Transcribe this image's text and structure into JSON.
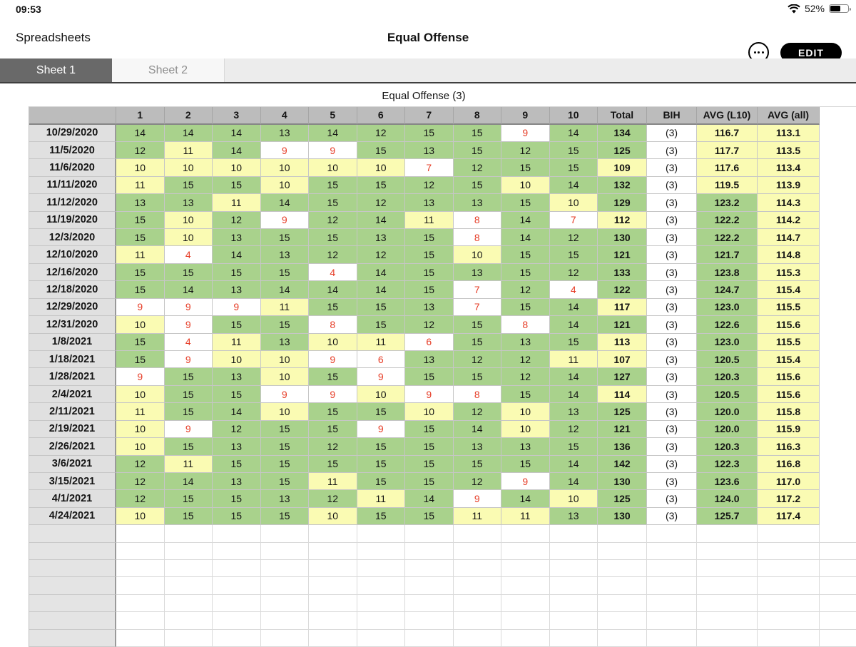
{
  "status_bar": {
    "time": "09:53",
    "battery": "52%"
  },
  "icons": {
    "wifi": "wifi-icon",
    "battery": "battery-icon",
    "more": "ellipsis-icon"
  },
  "nav": {
    "back_label": "Spreadsheets",
    "title": "Equal Offense",
    "edit_label": "EDIT"
  },
  "tabs": [
    {
      "label": "Sheet 1",
      "active": true
    },
    {
      "label": "Sheet 2",
      "active": false
    }
  ],
  "sheet": {
    "title": "Equal Offense (3)",
    "columns": [
      "1",
      "2",
      "3",
      "4",
      "5",
      "6",
      "7",
      "8",
      "9",
      "10",
      "Total",
      "BIH",
      "AVG (L10)",
      "AVG (all)"
    ],
    "rows": [
      {
        "date": "10/29/2020",
        "scores": [
          14,
          14,
          14,
          13,
          14,
          12,
          15,
          15,
          9,
          14
        ],
        "total": 134,
        "bih": "(3)",
        "avg_l10": "116.7",
        "avg_all": "113.1"
      },
      {
        "date": "11/5/2020",
        "scores": [
          12,
          11,
          14,
          9,
          9,
          15,
          13,
          15,
          12,
          15
        ],
        "total": 125,
        "bih": "(3)",
        "avg_l10": "117.7",
        "avg_all": "113.5"
      },
      {
        "date": "11/6/2020",
        "scores": [
          10,
          10,
          10,
          10,
          10,
          10,
          7,
          12,
          15,
          15
        ],
        "total": 109,
        "bih": "(3)",
        "avg_l10": "117.6",
        "avg_all": "113.4"
      },
      {
        "date": "11/11/2020",
        "scores": [
          11,
          15,
          15,
          10,
          15,
          15,
          12,
          15,
          10,
          14
        ],
        "total": 132,
        "bih": "(3)",
        "avg_l10": "119.5",
        "avg_all": "113.9"
      },
      {
        "date": "11/12/2020",
        "scores": [
          13,
          13,
          11,
          14,
          15,
          12,
          13,
          13,
          15,
          10
        ],
        "total": 129,
        "bih": "(3)",
        "avg_l10": "123.2",
        "avg_all": "114.3"
      },
      {
        "date": "11/19/2020",
        "scores": [
          15,
          10,
          12,
          9,
          12,
          14,
          11,
          8,
          14,
          7
        ],
        "total": 112,
        "bih": "(3)",
        "avg_l10": "122.2",
        "avg_all": "114.2"
      },
      {
        "date": "12/3/2020",
        "scores": [
          15,
          10,
          13,
          15,
          15,
          13,
          15,
          8,
          14,
          12
        ],
        "total": 130,
        "bih": "(3)",
        "avg_l10": "122.2",
        "avg_all": "114.7"
      },
      {
        "date": "12/10/2020",
        "scores": [
          11,
          4,
          14,
          13,
          12,
          12,
          15,
          10,
          15,
          15
        ],
        "total": 121,
        "bih": "(3)",
        "avg_l10": "121.7",
        "avg_all": "114.8"
      },
      {
        "date": "12/16/2020",
        "scores": [
          15,
          15,
          15,
          15,
          4,
          14,
          15,
          13,
          15,
          12
        ],
        "total": 133,
        "bih": "(3)",
        "avg_l10": "123.8",
        "avg_all": "115.3"
      },
      {
        "date": "12/18/2020",
        "scores": [
          15,
          14,
          13,
          14,
          14,
          14,
          15,
          7,
          12,
          4
        ],
        "total": 122,
        "bih": "(3)",
        "avg_l10": "124.7",
        "avg_all": "115.4"
      },
      {
        "date": "12/29/2020",
        "scores": [
          9,
          9,
          9,
          11,
          15,
          15,
          13,
          7,
          15,
          14
        ],
        "total": 117,
        "bih": "(3)",
        "avg_l10": "123.0",
        "avg_all": "115.5"
      },
      {
        "date": "12/31/2020",
        "scores": [
          10,
          9,
          15,
          15,
          8,
          15,
          12,
          15,
          8,
          14
        ],
        "total": 121,
        "bih": "(3)",
        "avg_l10": "122.6",
        "avg_all": "115.6"
      },
      {
        "date": "1/8/2021",
        "scores": [
          15,
          4,
          11,
          13,
          10,
          11,
          6,
          15,
          13,
          15
        ],
        "total": 113,
        "bih": "(3)",
        "avg_l10": "123.0",
        "avg_all": "115.5"
      },
      {
        "date": "1/18/2021",
        "scores": [
          15,
          9,
          10,
          10,
          9,
          6,
          13,
          12,
          12,
          11
        ],
        "total": 107,
        "bih": "(3)",
        "avg_l10": "120.5",
        "avg_all": "115.4"
      },
      {
        "date": "1/28/2021",
        "scores": [
          9,
          15,
          13,
          10,
          15,
          9,
          15,
          15,
          12,
          14
        ],
        "total": 127,
        "bih": "(3)",
        "avg_l10": "120.3",
        "avg_all": "115.6"
      },
      {
        "date": "2/4/2021",
        "scores": [
          10,
          15,
          15,
          9,
          9,
          10,
          9,
          8,
          15,
          14
        ],
        "total": 114,
        "bih": "(3)",
        "avg_l10": "120.5",
        "avg_all": "115.6"
      },
      {
        "date": "2/11/2021",
        "scores": [
          11,
          15,
          14,
          10,
          15,
          15,
          10,
          12,
          10,
          13
        ],
        "total": 125,
        "bih": "(3)",
        "avg_l10": "120.0",
        "avg_all": "115.8"
      },
      {
        "date": "2/19/2021",
        "scores": [
          10,
          9,
          12,
          15,
          15,
          9,
          15,
          14,
          10,
          12
        ],
        "total": 121,
        "bih": "(3)",
        "avg_l10": "120.0",
        "avg_all": "115.9"
      },
      {
        "date": "2/26/2021",
        "scores": [
          10,
          15,
          13,
          15,
          12,
          15,
          15,
          13,
          13,
          15
        ],
        "total": 136,
        "bih": "(3)",
        "avg_l10": "120.3",
        "avg_all": "116.3"
      },
      {
        "date": "3/6/2021",
        "scores": [
          12,
          11,
          15,
          15,
          15,
          15,
          15,
          15,
          15,
          14
        ],
        "total": 142,
        "bih": "(3)",
        "avg_l10": "122.3",
        "avg_all": "116.8"
      },
      {
        "date": "3/15/2021",
        "scores": [
          12,
          14,
          13,
          15,
          11,
          15,
          15,
          12,
          9,
          14
        ],
        "total": 130,
        "bih": "(3)",
        "avg_l10": "123.6",
        "avg_all": "117.0"
      },
      {
        "date": "4/1/2021",
        "scores": [
          12,
          15,
          15,
          13,
          12,
          11,
          14,
          9,
          14,
          10
        ],
        "total": 125,
        "bih": "(3)",
        "avg_l10": "124.0",
        "avg_all": "117.2"
      },
      {
        "date": "4/24/2021",
        "scores": [
          10,
          15,
          15,
          15,
          10,
          15,
          15,
          11,
          11,
          13
        ],
        "total": 130,
        "bih": "(3)",
        "avg_l10": "125.7",
        "avg_all": "117.4"
      }
    ],
    "empty_row_count": 7
  },
  "colors": {
    "green": "#a9d28c",
    "yellow": "#fafbb3",
    "red": "#e63c26",
    "header_gray": "#bcbcbc",
    "date_gray": "#e0e0e0",
    "tab_active": "#696969",
    "edit_button": "#000000"
  }
}
